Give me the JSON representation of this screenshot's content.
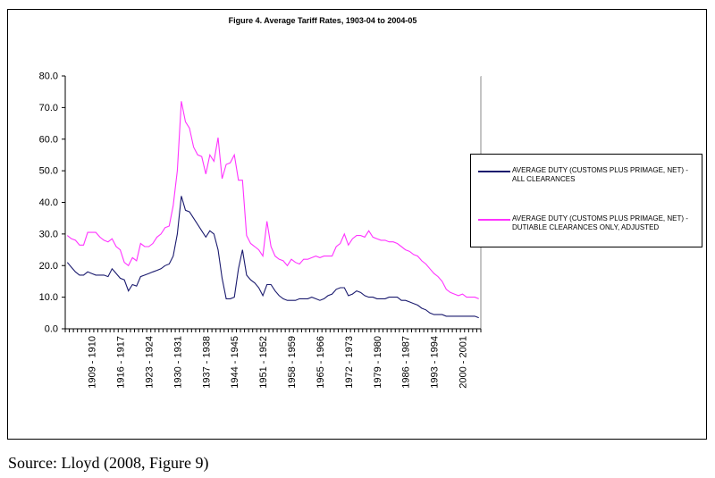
{
  "chart_data": {
    "type": "line",
    "title": "Figure 4.   Average Tariff Rates, 1903-04 to 2004-05",
    "xlabel": "",
    "ylabel": "",
    "ylim": [
      0,
      80
    ],
    "yticks": [
      "0.0",
      "10.0",
      "20.0",
      "30.0",
      "40.0",
      "50.0",
      "60.0",
      "70.0",
      "80.0"
    ],
    "x_start_year": 1903,
    "x_count": 102,
    "xtick_labels": [
      "1909 - 1910",
      "1916 - 1917",
      "1923 - 1924",
      "1930 - 1931",
      "1937 - 1938",
      "1944 - 1945",
      "1951 - 1952",
      "1958 - 1959",
      "1965 - 1966",
      "1972 - 1973",
      "1979 - 1980",
      "1986 - 1987",
      "1993 - 1994",
      "2000 - 2001"
    ],
    "grid": false,
    "legend_position": "right",
    "series": [
      {
        "name": "AVERAGE DUTY (CUSTOMS PLUS PRIMAGE, NET) - ALL CLEARANCES",
        "color": "#1a1a6e",
        "values": [
          21,
          19.5,
          18,
          17,
          17,
          18,
          17.5,
          17,
          17,
          17,
          16.5,
          19,
          17.5,
          16,
          15.5,
          12,
          14,
          13.5,
          16.5,
          17,
          17.5,
          18,
          18.5,
          19,
          20,
          20.5,
          23,
          30,
          42,
          37.5,
          37,
          35,
          33,
          31,
          29,
          31,
          30,
          25,
          16,
          9.5,
          9.5,
          10,
          19,
          25,
          17,
          15.5,
          14.5,
          13,
          10.5,
          14,
          14,
          12,
          10.5,
          9.5,
          9,
          9,
          9,
          9.5,
          9.5,
          9.5,
          10,
          9.5,
          9,
          9.5,
          10.5,
          11,
          12.5,
          13,
          13,
          10.5,
          11,
          12,
          11.5,
          10.5,
          10,
          10,
          9.5,
          9.5,
          9.5,
          10,
          10,
          10,
          9,
          9,
          8.5,
          8,
          7.5,
          6.5,
          6,
          5,
          4.5,
          4.5,
          4.5,
          4,
          4,
          4,
          4,
          4,
          4,
          4,
          4,
          3.5
        ]
      },
      {
        "name": "AVERAGE DUTY (CUSTOMS PLUS PRIMAGE, NET) - DUTIABLE CLEARANCES ONLY, ADJUSTED",
        "color": "#ff33ff",
        "values": [
          29.5,
          28.5,
          28,
          26.5,
          26.5,
          30.5,
          30.5,
          30.5,
          29,
          28,
          27.5,
          28.5,
          26,
          25,
          21,
          20,
          22.5,
          21.5,
          27,
          26,
          26,
          27,
          29,
          30,
          32,
          32.5,
          39,
          50,
          72,
          65.5,
          63.5,
          57.5,
          55,
          54.5,
          49,
          55,
          53,
          60.5,
          47.5,
          52,
          52.5,
          55,
          47,
          47,
          29.5,
          27,
          26,
          25,
          23,
          34,
          26,
          23,
          22,
          21.5,
          20,
          22,
          21,
          20.5,
          22,
          22,
          22.5,
          23,
          22.5,
          23,
          23,
          23,
          26,
          27,
          30,
          26.5,
          28.5,
          29.5,
          29.5,
          29,
          31,
          29,
          28.5,
          28,
          28,
          27.5,
          27.5,
          27,
          26,
          25,
          24.5,
          23.5,
          23,
          21.5,
          20.5,
          19,
          17.5,
          16.5,
          15,
          12.5,
          11.5,
          11,
          10.5,
          11,
          10,
          10,
          10,
          9.5
        ]
      }
    ]
  },
  "source": "Source: Lloyd (2008, Figure 9)"
}
